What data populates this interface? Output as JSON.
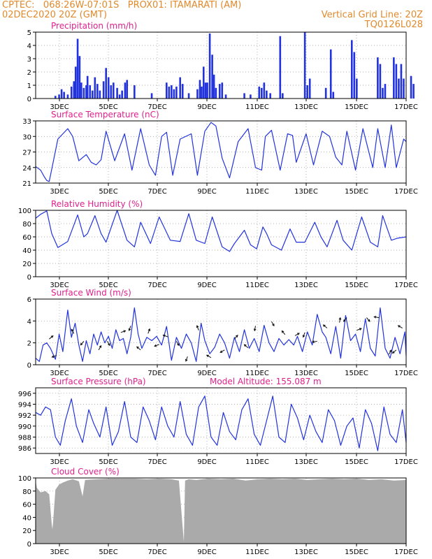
{
  "header": {
    "line1": "CPTEC:   068:26W-07:01S   PROX01: ITAMARATI (AM)",
    "line2_left": "02DEC2020 20Z (GMT)",
    "line2_right": "Vertical Grid Line: 20Z",
    "line3_right": "TQ0126L028"
  },
  "colors": {
    "header": "#e08a2c",
    "panel_title": "#e0208c",
    "series": "#2233dd",
    "cloud": "#aaaaaa",
    "grid": "#999999",
    "axis": "#000000"
  },
  "chart_data": [
    {
      "type": "bar",
      "title": "Precipitation (mm/h)",
      "x_ticks": [
        "3DEC",
        "5DEC",
        "7DEC",
        "9DEC",
        "11DEC",
        "13DEC",
        "15DEC",
        "17DEC"
      ],
      "ylim": [
        0,
        5
      ],
      "y_ticks": [
        "0",
        "1",
        "2",
        "3",
        "4",
        "5"
      ],
      "x_range_days": [
        0,
        15
      ],
      "points": [
        [
          0.8,
          0.2
        ],
        [
          0.95,
          0.3
        ],
        [
          1.05,
          0.7
        ],
        [
          1.15,
          0.5
        ],
        [
          1.3,
          0.3
        ],
        [
          1.45,
          0.9
        ],
        [
          1.55,
          1.3
        ],
        [
          1.62,
          2.4
        ],
        [
          1.7,
          4.5
        ],
        [
          1.78,
          3.2
        ],
        [
          1.85,
          1.2
        ],
        [
          1.95,
          0.8
        ],
        [
          2.05,
          1.0
        ],
        [
          2.1,
          1.7
        ],
        [
          2.2,
          1.0
        ],
        [
          2.3,
          0.6
        ],
        [
          2.4,
          1.6
        ],
        [
          2.5,
          1.1
        ],
        [
          2.6,
          0.6
        ],
        [
          2.75,
          1.3
        ],
        [
          2.85,
          2.3
        ],
        [
          2.95,
          1.6
        ],
        [
          3.05,
          1.0
        ],
        [
          3.15,
          1.2
        ],
        [
          3.3,
          0.8
        ],
        [
          3.4,
          0.3
        ],
        [
          3.5,
          0.6
        ],
        [
          3.62,
          1.2
        ],
        [
          3.7,
          1.4
        ],
        [
          4.0,
          1.0
        ],
        [
          4.7,
          0.4
        ],
        [
          5.3,
          1.2
        ],
        [
          5.4,
          0.9
        ],
        [
          5.5,
          1.0
        ],
        [
          5.6,
          0.7
        ],
        [
          5.7,
          0.9
        ],
        [
          5.85,
          1.6
        ],
        [
          5.95,
          1.1
        ],
        [
          6.2,
          0.4
        ],
        [
          6.55,
          0.7
        ],
        [
          6.65,
          1.4
        ],
        [
          6.72,
          0.9
        ],
        [
          6.8,
          2.4
        ],
        [
          6.88,
          1.2
        ],
        [
          6.95,
          1.2
        ],
        [
          7.05,
          4.9
        ],
        [
          7.15,
          3.3
        ],
        [
          7.22,
          1.8
        ],
        [
          7.3,
          0.8
        ],
        [
          7.45,
          1.1
        ],
        [
          7.55,
          1.2
        ],
        [
          7.7,
          0.3
        ],
        [
          8.45,
          0.4
        ],
        [
          8.7,
          0.3
        ],
        [
          9.05,
          0.9
        ],
        [
          9.15,
          0.8
        ],
        [
          9.25,
          1.2
        ],
        [
          9.35,
          0.6
        ],
        [
          9.5,
          0.4
        ],
        [
          9.9,
          4.7
        ],
        [
          10.0,
          0.4
        ],
        [
          10.9,
          5.0
        ],
        [
          11.0,
          1.0
        ],
        [
          11.1,
          1.5
        ],
        [
          11.75,
          0.8
        ],
        [
          11.95,
          3.7
        ],
        [
          12.05,
          0.5
        ],
        [
          12.8,
          4.4
        ],
        [
          12.9,
          3.5
        ],
        [
          13.0,
          1.5
        ],
        [
          13.85,
          3.1
        ],
        [
          13.95,
          2.6
        ],
        [
          14.05,
          0.8
        ],
        [
          14.15,
          1.1
        ],
        [
          14.5,
          3.1
        ],
        [
          14.6,
          2.6
        ],
        [
          14.7,
          1.5
        ],
        [
          14.8,
          2.6
        ],
        [
          14.9,
          1.5
        ],
        [
          15.2,
          1.7
        ],
        [
          15.3,
          1.1
        ]
      ]
    },
    {
      "type": "line",
      "title": "Surface Temperature (nC)",
      "x_ticks": [
        "3DEC",
        "5DEC",
        "7DEC",
        "9DEC",
        "11DEC",
        "13DEC",
        "15DEC",
        "17DEC"
      ],
      "ylim": [
        21,
        33
      ],
      "y_ticks": [
        "21",
        "24",
        "27",
        "30",
        "33"
      ],
      "x": [
        0,
        0.2,
        0.35,
        0.45,
        0.55,
        0.9,
        1.3,
        1.5,
        1.75,
        2.05,
        2.25,
        2.45,
        2.65,
        2.85,
        3.2,
        3.6,
        3.9,
        4.25,
        4.6,
        4.85,
        5.1,
        5.3,
        5.55,
        5.85,
        6.3,
        6.55,
        6.85,
        7.1,
        7.3,
        7.55,
        7.85,
        8.2,
        8.6,
        8.9,
        9.15,
        9.3,
        9.55,
        9.9,
        10.2,
        10.4,
        10.55,
        10.95,
        11.25,
        11.6,
        11.9,
        12.15,
        12.4,
        12.6,
        12.95,
        13.25,
        13.65,
        13.85,
        14.15,
        14.4,
        14.6,
        14.9,
        15.0
      ],
      "y": [
        24.2,
        23.5,
        22.2,
        21.5,
        21.3,
        29.5,
        31.5,
        30.0,
        25.3,
        26.5,
        25.0,
        24.5,
        25.5,
        31.0,
        25.3,
        30.5,
        23.5,
        31.5,
        24.5,
        22.5,
        30.0,
        30.8,
        22.5,
        29.5,
        30.5,
        22.5,
        31.0,
        32.7,
        32.0,
        25.8,
        22.0,
        29.0,
        31.5,
        24.0,
        23.5,
        30.0,
        31.2,
        23.5,
        30.5,
        30.2,
        25.0,
        30.5,
        24.5,
        31.0,
        30.0,
        26.0,
        24.5,
        31.0,
        23.5,
        31.5,
        24.0,
        31.5,
        24.0,
        32.2,
        24.0,
        29.5,
        29.0
      ]
    },
    {
      "type": "line",
      "title": "Relative Humidity (%)",
      "x_ticks": [
        "3DEC",
        "5DEC",
        "7DEC",
        "9DEC",
        "11DEC",
        "13DEC",
        "15DEC",
        "17DEC"
      ],
      "ylim": [
        0,
        100
      ],
      "y_ticks": [
        "0",
        "20",
        "40",
        "60",
        "80",
        "100"
      ],
      "x": [
        0,
        0.2,
        0.45,
        0.65,
        0.9,
        1.3,
        1.7,
        1.95,
        2.1,
        2.4,
        2.65,
        2.85,
        3.3,
        3.7,
        4.0,
        4.25,
        4.65,
        5.0,
        5.45,
        5.85,
        6.2,
        6.5,
        6.85,
        7.15,
        7.55,
        7.85,
        8.05,
        8.45,
        8.7,
        8.95,
        9.2,
        9.35,
        9.55,
        9.95,
        10.3,
        10.55,
        10.9,
        11.3,
        11.55,
        11.8,
        12.2,
        12.45,
        12.8,
        13.2,
        13.55,
        13.85,
        14.05,
        14.4,
        14.65,
        15.0
      ],
      "y": [
        88,
        94,
        99,
        65,
        44,
        53,
        93,
        60,
        65,
        92,
        65,
        52,
        100,
        55,
        45,
        82,
        50,
        90,
        55,
        53,
        95,
        55,
        50,
        90,
        45,
        38,
        50,
        70,
        48,
        42,
        75,
        65,
        48,
        40,
        72,
        52,
        52,
        82,
        60,
        45,
        85,
        55,
        40,
        90,
        52,
        45,
        92,
        55,
        58,
        60
      ]
    },
    {
      "type": "line",
      "title": "Surface Wind (m/s)",
      "x_ticks": [
        "3DEC",
        "5DEC",
        "7DEC",
        "9DEC",
        "11DEC",
        "13DEC",
        "15DEC",
        "17DEC"
      ],
      "ylim": [
        0,
        6
      ],
      "y_ticks": [
        "0",
        "2",
        "4",
        "6"
      ],
      "x": [
        0,
        0.15,
        0.3,
        0.45,
        0.6,
        0.8,
        0.95,
        1.1,
        1.3,
        1.45,
        1.6,
        1.75,
        1.9,
        2.05,
        2.2,
        2.35,
        2.5,
        2.65,
        2.8,
        2.95,
        3.1,
        3.25,
        3.4,
        3.55,
        3.7,
        3.85,
        4.0,
        4.15,
        4.3,
        4.5,
        4.7,
        4.9,
        5.1,
        5.3,
        5.5,
        5.7,
        5.9,
        6.1,
        6.3,
        6.5,
        6.7,
        6.85,
        7.05,
        7.25,
        7.45,
        7.65,
        7.85,
        8.05,
        8.25,
        8.45,
        8.65,
        8.85,
        9.05,
        9.25,
        9.45,
        9.65,
        9.85,
        10.05,
        10.25,
        10.45,
        10.6,
        10.8,
        11.0,
        11.2,
        11.4,
        11.6,
        11.75,
        11.95,
        12.15,
        12.35,
        12.55,
        12.75,
        12.95,
        13.15,
        13.35,
        13.55,
        13.75,
        13.95,
        14.15,
        14.35,
        14.55,
        14.75,
        14.95,
        15.0
      ],
      "y": [
        0.6,
        0.3,
        1.8,
        2.0,
        1.5,
        0.5,
        2.8,
        1.2,
        5.0,
        2.5,
        3.8,
        1.8,
        0.3,
        2.2,
        1.0,
        2.8,
        1.8,
        3.0,
        2.0,
        2.6,
        1.5,
        3.2,
        2.2,
        2.4,
        1.0,
        2.5,
        5.2,
        2.8,
        1.5,
        2.5,
        2.2,
        2.6,
        1.8,
        3.5,
        0.4,
        2.5,
        1.5,
        2.8,
        2.0,
        0.3,
        3.8,
        2.2,
        1.0,
        1.6,
        2.8,
        2.0,
        0.6,
        2.5,
        1.2,
        3.2,
        1.5,
        2.4,
        1.2,
        3.6,
        2.0,
        1.2,
        2.4,
        1.8,
        2.3,
        1.8,
        2.6,
        1.2,
        3.0,
        1.8,
        4.6,
        3.0,
        2.5,
        1.0,
        3.5,
        0.6,
        4.5,
        2.2,
        2.8,
        1.2,
        4.2,
        1.5,
        0.8,
        5.2,
        1.5,
        0.6,
        2.5,
        1.0,
        3.0,
        0.8
      ]
    },
    {
      "type": "line",
      "title": "Surface Pressure (hPa)",
      "subtitle": "Model Altitude: 155.087  m",
      "x_ticks": [
        "3DEC",
        "5DEC",
        "7DEC",
        "9DEC",
        "11DEC",
        "13DEC",
        "15DEC",
        "17DEC"
      ],
      "ylim": [
        985,
        997
      ],
      "y_ticks": [
        "986",
        "988",
        "990",
        "992",
        "994",
        "996"
      ],
      "x": [
        0,
        0.2,
        0.4,
        0.6,
        0.8,
        1.0,
        1.2,
        1.45,
        1.65,
        1.9,
        2.15,
        2.35,
        2.6,
        2.85,
        3.1,
        3.35,
        3.6,
        3.85,
        4.1,
        4.35,
        4.6,
        4.85,
        5.1,
        5.35,
        5.6,
        5.85,
        6.1,
        6.35,
        6.6,
        6.85,
        7.1,
        7.35,
        7.6,
        7.85,
        8.1,
        8.35,
        8.6,
        8.85,
        9.1,
        9.35,
        9.6,
        9.85,
        10.1,
        10.35,
        10.6,
        10.85,
        11.1,
        11.35,
        11.6,
        11.85,
        12.1,
        12.35,
        12.6,
        12.85,
        13.1,
        13.35,
        13.6,
        13.85,
        14.1,
        14.35,
        14.6,
        14.85,
        15.0
      ],
      "y": [
        992.5,
        992.0,
        993.5,
        993.0,
        988.0,
        986.5,
        991.0,
        995.0,
        990.0,
        987.0,
        993.0,
        990.5,
        988.0,
        993.5,
        986.5,
        989.0,
        994.5,
        988.0,
        987.0,
        993.5,
        991.0,
        987.5,
        993.5,
        990.0,
        988.0,
        994.5,
        988.5,
        986.5,
        993.5,
        995.5,
        988.0,
        986.5,
        992.5,
        989.0,
        987.5,
        993.0,
        995.0,
        988.5,
        986.5,
        991.0,
        995.5,
        988.0,
        987.0,
        994.0,
        991.5,
        987.5,
        992.0,
        989.0,
        987.0,
        993.0,
        991.0,
        986.5,
        990.0,
        991.5,
        986.0,
        993.0,
        990.5,
        985.5,
        993.5,
        988.5,
        987.0,
        993.0,
        987.0
      ]
    },
    {
      "type": "area",
      "title": "Cloud Cover (%)",
      "x_ticks": [
        "3DEC",
        "5DEC",
        "7DEC",
        "9DEC",
        "11DEC",
        "13DEC",
        "15DEC",
        "17DEC"
      ],
      "ylim": [
        0,
        100
      ],
      "y_ticks": [
        "0",
        "20",
        "40",
        "60",
        "80",
        "100"
      ],
      "x": [
        0,
        0.05,
        0.2,
        0.4,
        0.55,
        0.65,
        0.68,
        0.72,
        0.8,
        0.95,
        1.1,
        1.3,
        1.5,
        1.75,
        1.9,
        2.0,
        2.5,
        3.0,
        3.5,
        4.0,
        4.5,
        5.0,
        5.5,
        5.8,
        6.0,
        6.05,
        6.2,
        6.5,
        7.0,
        7.5,
        8.0,
        8.5,
        9.0,
        9.5,
        10.0,
        10.5,
        11.0,
        11.5,
        12.0,
        12.5,
        13.0,
        13.5,
        14.0,
        14.5,
        15.0
      ],
      "y": [
        95,
        85,
        78,
        80,
        75,
        30,
        22,
        40,
        82,
        90,
        93,
        96,
        98,
        95,
        72,
        97,
        98,
        99,
        99,
        99,
        98,
        99,
        98,
        96,
        3,
        96,
        98,
        97,
        99,
        98,
        99,
        96,
        98,
        99,
        98,
        99,
        97,
        98,
        99,
        98,
        99,
        97,
        98,
        96,
        97
      ]
    }
  ]
}
